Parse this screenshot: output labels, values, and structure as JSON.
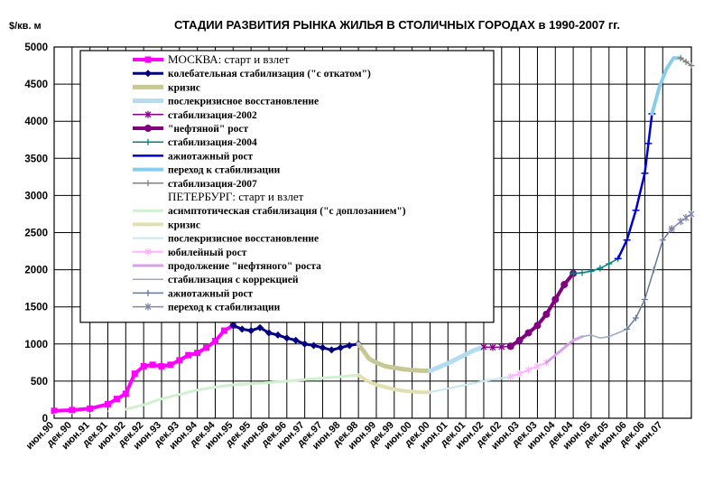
{
  "chart_data": {
    "type": "line",
    "title": "СТАДИИ РАЗВИТИЯ РЫНКА ЖИЛЬЯ В СТОЛИЧНЫХ ГОРОДАХ в 1990-2007 гг.",
    "ylabel": "$/кв. м",
    "xlabel": "",
    "ylim": [
      0,
      5000
    ],
    "yticks": [
      0,
      500,
      1000,
      1500,
      2000,
      2500,
      3000,
      3500,
      4000,
      4500,
      5000
    ],
    "xlim": [
      0,
      35.6
    ],
    "xticks": [
      "июн.90",
      "дек.90",
      "июн.91",
      "дек.91",
      "июн.92",
      "дек.92",
      "июн.93",
      "дек.93",
      "июн.94",
      "дек.94",
      "июн.95",
      "дек.95",
      "июн.96",
      "дек.96",
      "июн.97",
      "дек.97",
      "июн.98",
      "дек.98",
      "июн.99",
      "дек.99",
      "июн.00",
      "дек.00",
      "июн.01",
      "дек.01",
      "июн.02",
      "дек.02",
      "июн.03",
      "дек.03",
      "июн.04",
      "дек.04",
      "июн.05",
      "дек.05",
      "июн.06",
      "дек.06",
      "июн.07"
    ],
    "grid": true,
    "legend_position": "upper-left",
    "series": [
      {
        "name": "МОСКВА: старт и взлет",
        "color": "#ff00ff",
        "width": 4,
        "marker": "square",
        "points": [
          [
            0,
            100
          ],
          [
            1,
            110
          ],
          [
            2,
            130
          ],
          [
            3,
            190
          ],
          [
            3.5,
            260
          ],
          [
            4,
            330
          ],
          [
            4.5,
            600
          ],
          [
            5,
            700
          ],
          [
            5.5,
            720
          ],
          [
            6,
            700
          ],
          [
            6.5,
            720
          ],
          [
            7,
            780
          ],
          [
            7.5,
            850
          ],
          [
            8,
            880
          ],
          [
            8.5,
            950
          ],
          [
            9,
            1040
          ],
          [
            9.5,
            1180
          ],
          [
            10,
            1250
          ]
        ]
      },
      {
        "name": "колебательная стабилизация (\"с откатом\")",
        "color": "#000080",
        "width": 3,
        "marker": "diamond",
        "points": [
          [
            10,
            1250
          ],
          [
            10.5,
            1200
          ],
          [
            11,
            1180
          ],
          [
            11.5,
            1220
          ],
          [
            12,
            1150
          ],
          [
            12.5,
            1120
          ],
          [
            13,
            1080
          ],
          [
            13.5,
            1050
          ],
          [
            14,
            1000
          ],
          [
            14.5,
            980
          ],
          [
            15,
            950
          ],
          [
            15.5,
            920
          ],
          [
            16,
            950
          ],
          [
            16.5,
            980
          ],
          [
            17,
            1000
          ]
        ]
      },
      {
        "name": "кризис",
        "color": "#c8c896",
        "width": 5,
        "marker": "none",
        "points": [
          [
            17,
            1000
          ],
          [
            17.3,
            900
          ],
          [
            17.6,
            800
          ],
          [
            18,
            750
          ],
          [
            18.5,
            700
          ],
          [
            19,
            680
          ],
          [
            19.5,
            660
          ],
          [
            20,
            650
          ],
          [
            20.5,
            640
          ],
          [
            21,
            640
          ]
        ]
      },
      {
        "name": "послекризисное восстановление",
        "color": "#b4dcf0",
        "width": 5,
        "marker": "none",
        "points": [
          [
            21,
            640
          ],
          [
            21.5,
            690
          ],
          [
            22,
            740
          ],
          [
            22.5,
            800
          ],
          [
            23,
            860
          ],
          [
            23.5,
            920
          ],
          [
            24,
            960
          ]
        ]
      },
      {
        "name": "стабилизация-2002",
        "color": "#8b008b",
        "width": 1.5,
        "marker": "star",
        "points": [
          [
            24,
            960
          ],
          [
            24.5,
            955
          ],
          [
            25,
            960
          ],
          [
            25.5,
            970
          ]
        ]
      },
      {
        "name": "\"нефтяной\" рост",
        "color": "#800080",
        "width": 4,
        "marker": "circle",
        "points": [
          [
            25.5,
            970
          ],
          [
            26,
            1050
          ],
          [
            26.5,
            1150
          ],
          [
            27,
            1250
          ],
          [
            27.5,
            1400
          ],
          [
            28,
            1600
          ],
          [
            28.5,
            1800
          ],
          [
            29,
            1950
          ]
        ]
      },
      {
        "name": "стабилизация-2004",
        "color": "#008080",
        "width": 1.5,
        "marker": "plus",
        "points": [
          [
            29,
            1950
          ],
          [
            29.5,
            1960
          ],
          [
            30,
            1980
          ],
          [
            30.5,
            2020
          ],
          [
            31,
            2080
          ],
          [
            31.5,
            2150
          ]
        ]
      },
      {
        "name": "ажиотажный рост",
        "color": "#0000cd",
        "width": 2.5,
        "marker": "dash",
        "points": [
          [
            31.5,
            2150
          ],
          [
            32,
            2400
          ],
          [
            32.5,
            2800
          ],
          [
            33,
            3300
          ],
          [
            33.2,
            3700
          ],
          [
            33.4,
            4100
          ]
        ]
      },
      {
        "name": "переход к стабилизации",
        "color": "#87ceeb",
        "width": 4,
        "marker": "none",
        "points": [
          [
            33.4,
            4100
          ],
          [
            33.8,
            4450
          ],
          [
            34.2,
            4700
          ],
          [
            34.6,
            4850
          ],
          [
            35,
            4850
          ]
        ]
      },
      {
        "name": "стабилизация-2007",
        "color": "#808080",
        "width": 1.5,
        "marker": "plus",
        "points": [
          [
            35,
            4850
          ],
          [
            35.3,
            4800
          ],
          [
            35.6,
            4750
          ]
        ]
      },
      {
        "name": "ПЕТЕРБУРГ: старт и взлет",
        "color": "#ffffff",
        "width": 1,
        "marker": "none",
        "points": [
          [
            0,
            60
          ],
          [
            2,
            70
          ],
          [
            4,
            120
          ]
        ]
      },
      {
        "name": "асимптотическая стабилизация (\"с доплозанием\")",
        "color": "#d0f0d0",
        "width": 3,
        "marker": "none",
        "points": [
          [
            4,
            120
          ],
          [
            5,
            180
          ],
          [
            6,
            260
          ],
          [
            7,
            320
          ],
          [
            8,
            380
          ],
          [
            9,
            420
          ],
          [
            10,
            450
          ],
          [
            12,
            480
          ],
          [
            14,
            520
          ],
          [
            16,
            560
          ],
          [
            17,
            580
          ]
        ]
      },
      {
        "name": "кризис",
        "color": "#e0e0b0",
        "width": 4,
        "marker": "none",
        "points": [
          [
            17,
            580
          ],
          [
            17.5,
            500
          ],
          [
            18,
            450
          ],
          [
            18.5,
            420
          ],
          [
            19,
            390
          ],
          [
            19.5,
            370
          ],
          [
            20,
            360
          ],
          [
            20.5,
            350
          ],
          [
            21,
            350
          ]
        ]
      },
      {
        "name": "послекризисное восстановление",
        "color": "#c8e6f0",
        "width": 2,
        "marker": "none",
        "points": [
          [
            21,
            350
          ],
          [
            22,
            400
          ],
          [
            23,
            450
          ],
          [
            24,
            500
          ],
          [
            25,
            540
          ],
          [
            25.5,
            560
          ]
        ]
      },
      {
        "name": "юбилейный рост",
        "color": "#ffb4ff",
        "width": 2,
        "marker": "star",
        "points": [
          [
            25.5,
            560
          ],
          [
            26,
            600
          ],
          [
            26.5,
            650
          ],
          [
            27,
            700
          ],
          [
            27.5,
            750
          ]
        ]
      },
      {
        "name": "продолжение \"нефтяного\" роста",
        "color": "#d8a0e8",
        "width": 3,
        "marker": "none",
        "points": [
          [
            27.5,
            750
          ],
          [
            28,
            850
          ],
          [
            28.5,
            950
          ],
          [
            29,
            1050
          ],
          [
            29.5,
            1100
          ]
        ]
      },
      {
        "name": "стабилизация с коррекцией",
        "color": "#9aa9c8",
        "width": 1.5,
        "marker": "none",
        "points": [
          [
            29.5,
            1100
          ],
          [
            30,
            1120
          ],
          [
            30.5,
            1080
          ],
          [
            31,
            1100
          ],
          [
            31.5,
            1150
          ],
          [
            32,
            1200
          ]
        ]
      },
      {
        "name": "ажиотажный рост",
        "color": "#6a7a99",
        "width": 1.5,
        "marker": "plus",
        "points": [
          [
            32,
            1200
          ],
          [
            32.5,
            1350
          ],
          [
            33,
            1600
          ],
          [
            33.5,
            2000
          ],
          [
            34,
            2400
          ],
          [
            34.5,
            2550
          ]
        ]
      },
      {
        "name": "переход к стабилизации",
        "color": "#7f86a8",
        "width": 1.5,
        "marker": "star",
        "points": [
          [
            34.5,
            2550
          ],
          [
            35,
            2650
          ],
          [
            35.3,
            2700
          ],
          [
            35.6,
            2750
          ]
        ]
      }
    ]
  }
}
